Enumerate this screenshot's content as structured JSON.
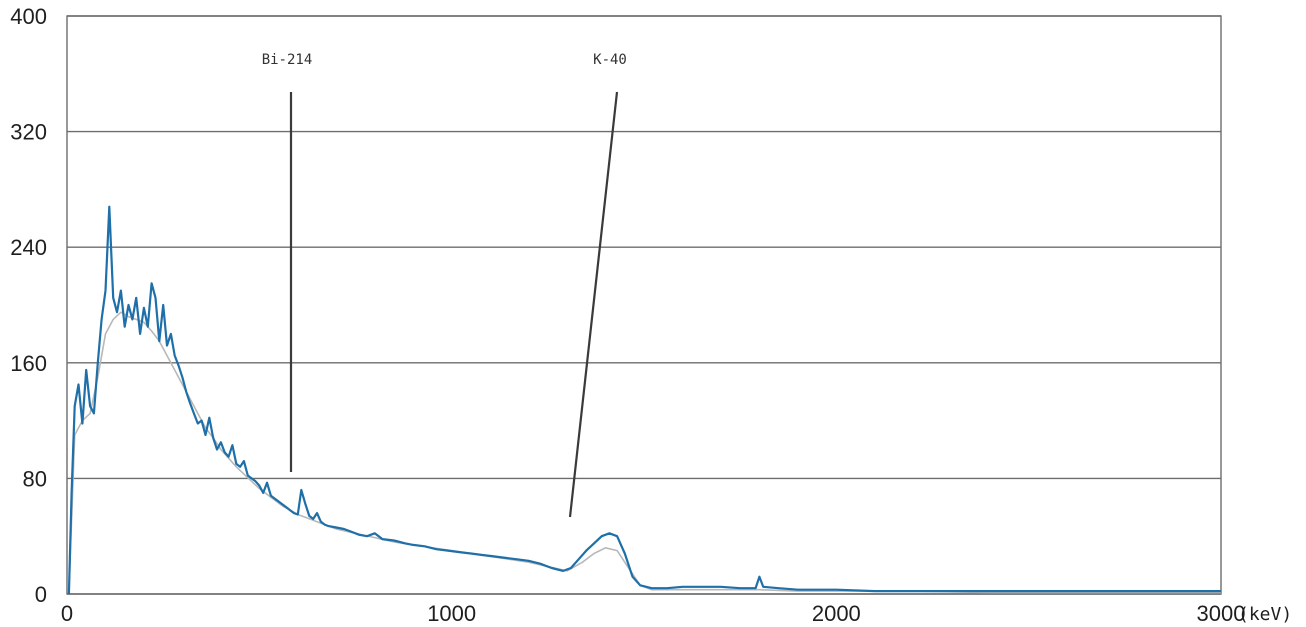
{
  "chart_data": {
    "type": "line",
    "title": "",
    "xlabel": "",
    "ylabel": "",
    "x_unit": "(keV)",
    "xlim": [
      0,
      3000
    ],
    "ylim": [
      0,
      400
    ],
    "x_ticks": [
      0,
      1000,
      2000,
      3000
    ],
    "x_tick_labels": [
      "0",
      "1000",
      "2000",
      "3000"
    ],
    "y_ticks": [
      0,
      80,
      160,
      240,
      320,
      400
    ],
    "y_tick_labels": [
      "0",
      "80",
      "160",
      "240",
      "320",
      "400"
    ],
    "grid": {
      "horizontal": true,
      "vertical": false
    },
    "colors": {
      "primary_series": "#1f6fa8",
      "secondary_series": "#b8b8b8",
      "grid": "#6d6d6d",
      "annotation_line": "#3a3a3a"
    },
    "annotations": [
      {
        "label": "Bi-214",
        "energy_keV": 609
      },
      {
        "label": "K-40",
        "energy_keV": 1461
      }
    ],
    "series": [
      {
        "values": [
          [
            5,
            0
          ],
          [
            12,
            70
          ],
          [
            20,
            130
          ],
          [
            30,
            145
          ],
          [
            40,
            118
          ],
          [
            50,
            155
          ],
          [
            60,
            130
          ],
          [
            70,
            125
          ],
          [
            80,
            160
          ],
          [
            90,
            190
          ],
          [
            100,
            210
          ],
          [
            110,
            268
          ],
          [
            120,
            205
          ],
          [
            130,
            195
          ],
          [
            140,
            210
          ],
          [
            150,
            185
          ],
          [
            160,
            200
          ],
          [
            170,
            190
          ],
          [
            180,
            205
          ],
          [
            190,
            180
          ],
          [
            200,
            198
          ],
          [
            210,
            185
          ],
          [
            220,
            215
          ],
          [
            230,
            205
          ],
          [
            240,
            175
          ],
          [
            250,
            200
          ],
          [
            260,
            172
          ],
          [
            270,
            180
          ],
          [
            280,
            165
          ],
          [
            290,
            158
          ],
          [
            300,
            150
          ],
          [
            310,
            140
          ],
          [
            320,
            132
          ],
          [
            330,
            125
          ],
          [
            340,
            118
          ],
          [
            350,
            120
          ],
          [
            360,
            110
          ],
          [
            370,
            122
          ],
          [
            380,
            108
          ],
          [
            390,
            100
          ],
          [
            400,
            105
          ],
          [
            410,
            98
          ],
          [
            420,
            95
          ],
          [
            430,
            103
          ],
          [
            440,
            90
          ],
          [
            450,
            88
          ],
          [
            460,
            92
          ],
          [
            470,
            82
          ],
          [
            480,
            80
          ],
          [
            490,
            78
          ],
          [
            500,
            75
          ],
          [
            510,
            70
          ],
          [
            520,
            77
          ],
          [
            530,
            68
          ],
          [
            540,
            66
          ],
          [
            550,
            64
          ],
          [
            560,
            62
          ],
          [
            570,
            60
          ],
          [
            580,
            58
          ],
          [
            590,
            56
          ],
          [
            600,
            55
          ],
          [
            609,
            72
          ],
          [
            620,
            62
          ],
          [
            630,
            54
          ],
          [
            640,
            52
          ],
          [
            650,
            56
          ],
          [
            660,
            50
          ],
          [
            670,
            48
          ],
          [
            680,
            47
          ],
          [
            700,
            46
          ],
          [
            720,
            45
          ],
          [
            740,
            43
          ],
          [
            760,
            41
          ],
          [
            780,
            40
          ],
          [
            800,
            42
          ],
          [
            820,
            38
          ],
          [
            850,
            37
          ],
          [
            880,
            35
          ],
          [
            900,
            34
          ],
          [
            930,
            33
          ],
          [
            960,
            31
          ],
          [
            990,
            30
          ],
          [
            1020,
            29
          ],
          [
            1050,
            28
          ],
          [
            1080,
            27
          ],
          [
            1110,
            26
          ],
          [
            1140,
            25
          ],
          [
            1170,
            24
          ],
          [
            1200,
            23
          ],
          [
            1230,
            21
          ],
          [
            1260,
            18
          ],
          [
            1290,
            16
          ],
          [
            1310,
            18
          ],
          [
            1330,
            24
          ],
          [
            1350,
            30
          ],
          [
            1370,
            35
          ],
          [
            1390,
            40
          ],
          [
            1410,
            42
          ],
          [
            1430,
            40
          ],
          [
            1450,
            28
          ],
          [
            1470,
            12
          ],
          [
            1490,
            6
          ],
          [
            1520,
            4
          ],
          [
            1560,
            4
          ],
          [
            1600,
            5
          ],
          [
            1650,
            5
          ],
          [
            1700,
            5
          ],
          [
            1750,
            4
          ],
          [
            1790,
            4
          ],
          [
            1800,
            12
          ],
          [
            1810,
            5
          ],
          [
            1850,
            4
          ],
          [
            1900,
            3
          ],
          [
            1950,
            3
          ],
          [
            2000,
            3
          ],
          [
            2100,
            2
          ],
          [
            2200,
            2
          ],
          [
            2300,
            2
          ],
          [
            2400,
            2
          ],
          [
            2500,
            2
          ],
          [
            2600,
            2
          ],
          [
            2700,
            2
          ],
          [
            2800,
            2
          ],
          [
            2900,
            2
          ],
          [
            3000,
            2
          ]
        ]
      },
      {
        "values": [
          [
            5,
            0
          ],
          [
            20,
            110
          ],
          [
            40,
            120
          ],
          [
            60,
            125
          ],
          [
            80,
            150
          ],
          [
            100,
            180
          ],
          [
            120,
            190
          ],
          [
            140,
            195
          ],
          [
            160,
            192
          ],
          [
            180,
            190
          ],
          [
            200,
            188
          ],
          [
            220,
            182
          ],
          [
            240,
            175
          ],
          [
            260,
            165
          ],
          [
            280,
            155
          ],
          [
            300,
            145
          ],
          [
            320,
            135
          ],
          [
            340,
            125
          ],
          [
            360,
            115
          ],
          [
            380,
            108
          ],
          [
            400,
            100
          ],
          [
            420,
            94
          ],
          [
            440,
            88
          ],
          [
            460,
            83
          ],
          [
            480,
            78
          ],
          [
            500,
            73
          ],
          [
            520,
            69
          ],
          [
            540,
            65
          ],
          [
            560,
            61
          ],
          [
            580,
            58
          ],
          [
            600,
            55
          ],
          [
            620,
            53
          ],
          [
            640,
            51
          ],
          [
            660,
            49
          ],
          [
            680,
            47
          ],
          [
            700,
            45
          ],
          [
            750,
            42
          ],
          [
            800,
            39
          ],
          [
            850,
            36
          ],
          [
            900,
            34
          ],
          [
            950,
            32
          ],
          [
            1000,
            30
          ],
          [
            1050,
            28
          ],
          [
            1100,
            26
          ],
          [
            1150,
            24
          ],
          [
            1200,
            22
          ],
          [
            1250,
            19
          ],
          [
            1300,
            16
          ],
          [
            1340,
            22
          ],
          [
            1370,
            28
          ],
          [
            1400,
            32
          ],
          [
            1430,
            30
          ],
          [
            1460,
            18
          ],
          [
            1490,
            6
          ],
          [
            1520,
            3
          ],
          [
            1600,
            3
          ],
          [
            1700,
            3
          ],
          [
            1800,
            3
          ],
          [
            1900,
            2
          ],
          [
            2000,
            2
          ],
          [
            2200,
            2
          ],
          [
            2400,
            1
          ],
          [
            2600,
            1
          ],
          [
            2800,
            1
          ],
          [
            3000,
            1
          ]
        ]
      }
    ]
  }
}
